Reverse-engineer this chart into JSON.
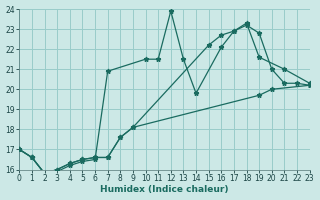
{
  "xlabel": "Humidex (Indice chaleur)",
  "xlim": [
    0,
    23
  ],
  "ylim": [
    16,
    24
  ],
  "yticks": [
    16,
    17,
    18,
    19,
    20,
    21,
    22,
    23,
    24
  ],
  "xticks": [
    0,
    1,
    2,
    3,
    4,
    5,
    6,
    7,
    8,
    9,
    10,
    11,
    12,
    13,
    14,
    15,
    16,
    17,
    18,
    19,
    20,
    21,
    22,
    23
  ],
  "bg_color": "#cce8e6",
  "grid_color": "#99ccca",
  "line_color": "#1a6b60",
  "lines": [
    {
      "x": [
        0,
        1,
        2,
        3,
        4,
        5,
        6,
        7,
        10,
        11,
        12,
        13,
        14,
        16,
        17,
        18,
        19,
        20,
        21,
        22,
        23
      ],
      "y": [
        17.0,
        16.6,
        15.8,
        15.9,
        16.2,
        16.4,
        16.5,
        20.9,
        21.5,
        21.5,
        23.9,
        21.5,
        19.8,
        22.1,
        22.9,
        23.2,
        22.8,
        21.0,
        20.3,
        20.3,
        20.2
      ]
    },
    {
      "x": [
        0,
        1,
        2,
        3,
        4,
        5,
        6,
        7,
        8,
        9,
        15,
        16,
        17,
        18,
        19,
        21,
        23
      ],
      "y": [
        17.0,
        16.6,
        15.8,
        16.0,
        16.3,
        16.5,
        16.6,
        16.6,
        17.6,
        18.1,
        22.2,
        22.7,
        22.9,
        23.3,
        21.6,
        21.0,
        20.3
      ]
    },
    {
      "x": [
        0,
        1,
        2,
        3,
        4,
        5,
        6,
        7,
        8,
        9,
        19,
        20,
        23
      ],
      "y": [
        17.0,
        16.6,
        15.8,
        16.0,
        16.3,
        16.5,
        16.6,
        16.6,
        17.6,
        18.1,
        19.7,
        20.0,
        20.2
      ]
    }
  ]
}
